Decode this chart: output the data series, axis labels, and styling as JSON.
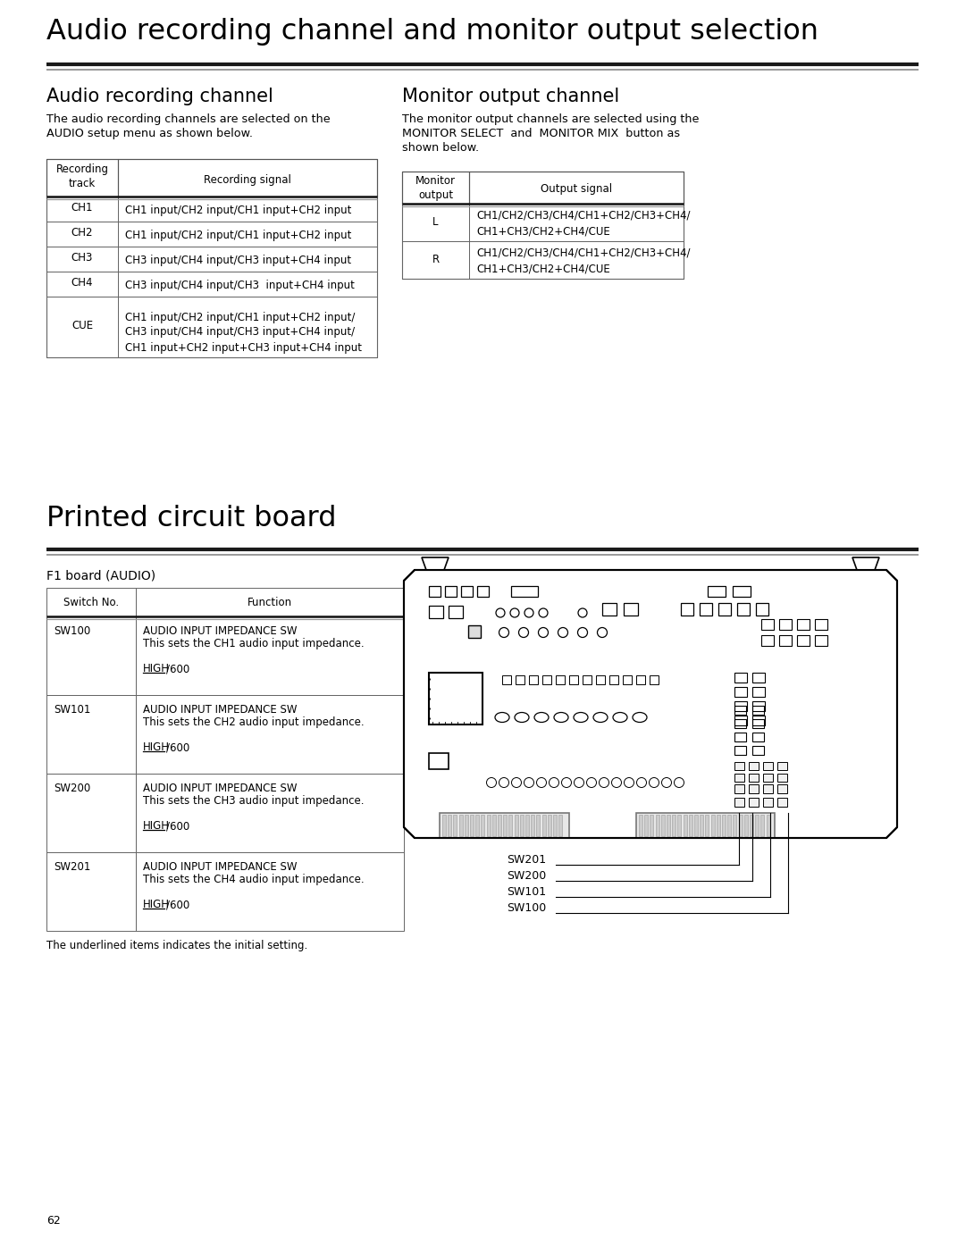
{
  "main_title": "Audio recording channel and monitor output selection",
  "section1_title": "Audio recording channel",
  "section2_title": "Monitor output channel",
  "section1_desc1": "The audio recording channels are selected on the",
  "section1_desc2": "AUDIO setup menu as shown below.",
  "section2_desc1": "The monitor output channels are selected using the",
  "section2_desc2": "MONITOR SELECT  and  MONITOR MIX  button as",
  "section2_desc3": "shown below.",
  "rec_table_col1_header": "Recording\ntrack",
  "rec_table_col2_header": "Recording signal",
  "rec_table_rows": [
    [
      "CH1",
      "CH1 input/CH2 input/CH1 input+CH2 input"
    ],
    [
      "CH2",
      "CH1 input/CH2 input/CH1 input+CH2 input"
    ],
    [
      "CH3",
      "CH3 input/CH4 input/CH3 input+CH4 input"
    ],
    [
      "CH4",
      "CH3 input/CH4 input/CH3  input+CH4 input"
    ],
    [
      "CUE",
      "CH1 input/CH2 input/CH1 input+CH2 input/\nCH3 input/CH4 input/CH3 input+CH4 input/\nCH1 input+CH2 input+CH3 input+CH4 input"
    ]
  ],
  "mon_table_col1_header": "Monitor\noutput",
  "mon_table_col2_header": "Output signal",
  "mon_table_rows": [
    [
      "L",
      "CH1/CH2/CH3/CH4/CH1+CH2/CH3+CH4/\nCH1+CH3/CH2+CH4/CUE"
    ],
    [
      "R",
      "CH1/CH2/CH3/CH4/CH1+CH2/CH3+CH4/\nCH1+CH3/CH2+CH4/CUE"
    ]
  ],
  "section3_title": "Printed circuit board",
  "section4_title": "F1 board (AUDIO)",
  "sw_table_col1_header": "Switch No.",
  "sw_table_col2_header": "Function",
  "sw_table_rows": [
    [
      "SW100",
      "AUDIO INPUT IMPEDANCE SW",
      "This sets the CH1 audio input impedance.",
      "HIGH/600"
    ],
    [
      "SW101",
      "AUDIO INPUT IMPEDANCE SW",
      "This sets the CH2 audio input impedance.",
      "HIGH/600"
    ],
    [
      "SW200",
      "AUDIO INPUT IMPEDANCE SW",
      "This sets the CH3 audio input impedance.",
      "HIGH/600"
    ],
    [
      "SW201",
      "AUDIO INPUT IMPEDANCE SW",
      "This sets the CH4 audio input impedance.",
      "HIGH/600"
    ]
  ],
  "underline_text": "The underlined items indicates the initial setting.",
  "page_number": "62",
  "bg_color": "#ffffff"
}
